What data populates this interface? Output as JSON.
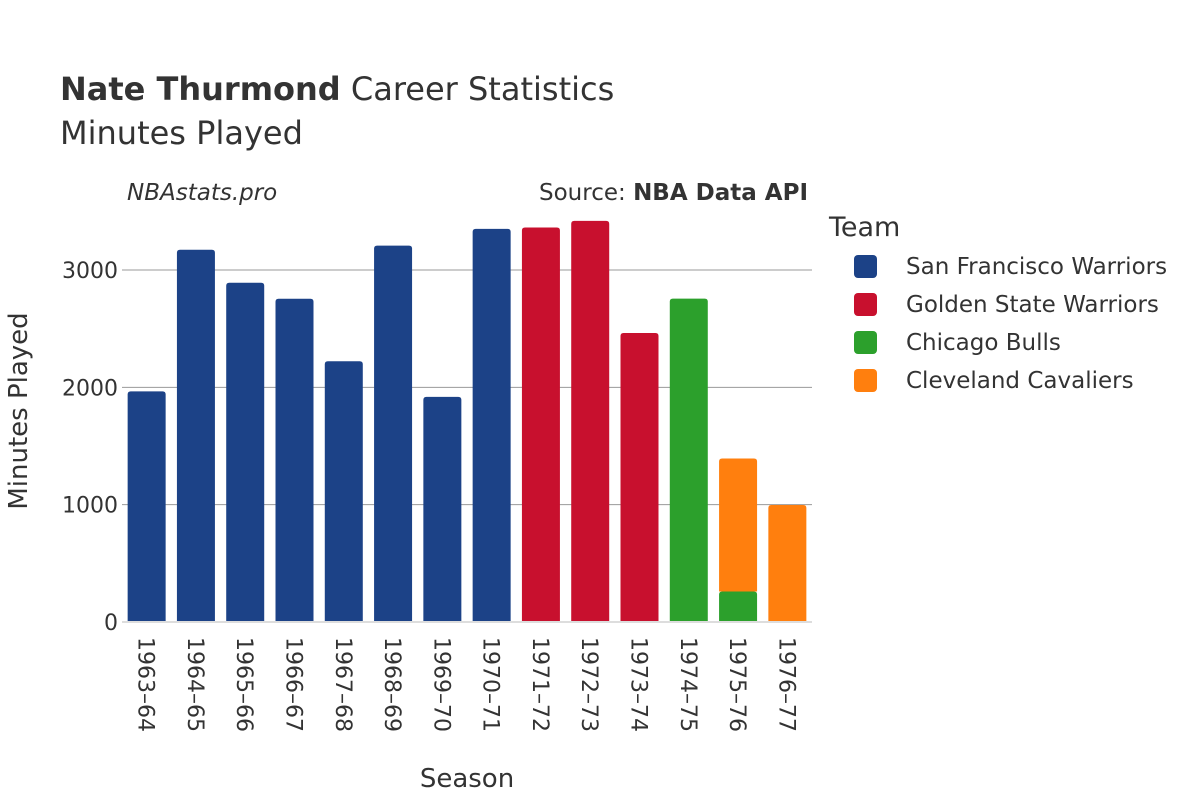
{
  "header": {
    "player_name": "Nate Thurmond",
    "title_rest": " Career Statistics",
    "subtitle": "Minutes Played",
    "site": "NBAstats.pro",
    "source_prefix": "Source: ",
    "source_name": "NBA Data API"
  },
  "legend": {
    "title": "Team"
  },
  "chart_data": {
    "type": "bar",
    "stacked": true,
    "categories": [
      "1963–64",
      "1964–65",
      "1965–66",
      "1966–67",
      "1967–68",
      "1968–69",
      "1969–70",
      "1970–71",
      "1971–72",
      "1972–73",
      "1973–74",
      "1974–75",
      "1975–76",
      "1976–77"
    ],
    "series": [
      {
        "name": "San Francisco Warriors",
        "color": "#1c4287",
        "values": [
          1966,
          3173,
          2891,
          2755,
          2222,
          3208,
          1919,
          3351,
          0,
          0,
          0,
          0,
          0,
          0
        ]
      },
      {
        "name": "Golden State Warriors",
        "color": "#c8102e",
        "values": [
          0,
          0,
          0,
          0,
          0,
          0,
          0,
          0,
          3362,
          3419,
          2463,
          0,
          0,
          0
        ]
      },
      {
        "name": "Chicago Bulls",
        "color": "#2ca02c",
        "values": [
          0,
          0,
          0,
          0,
          0,
          0,
          0,
          0,
          0,
          0,
          0,
          2756,
          260,
          0
        ]
      },
      {
        "name": "Cleveland Cavaliers",
        "color": "#ff7f0e",
        "values": [
          0,
          0,
          0,
          0,
          0,
          0,
          0,
          0,
          0,
          0,
          0,
          0,
          1133,
          997
        ]
      }
    ],
    "xlabel": "Season",
    "ylabel": "Minutes Played",
    "ylim": [
      0,
      3500
    ],
    "yticks": [
      0,
      1000,
      2000,
      3000
    ],
    "grid": true,
    "legend_position": "right"
  }
}
